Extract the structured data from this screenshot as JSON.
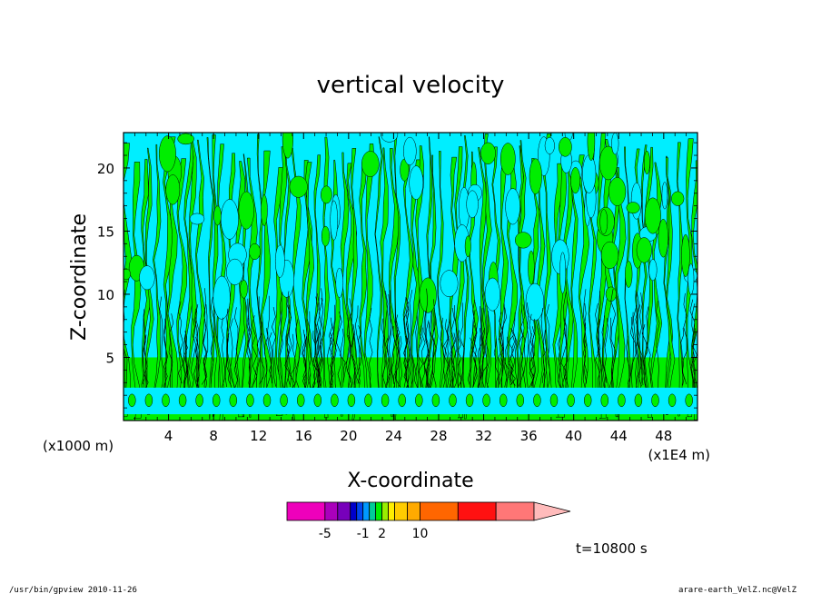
{
  "chart_data": {
    "type": "heatmap",
    "title": "vertical velocity",
    "xlabel": "X-coordinate",
    "ylabel": "Z-coordinate",
    "x_unit_left": "(x1000 m)",
    "x_unit_right": "(x1E4 m)",
    "xlim": [
      0,
      51
    ],
    "ylim": [
      0,
      22.8
    ],
    "x_ticks": [
      4,
      8,
      12,
      16,
      20,
      24,
      28,
      32,
      36,
      40,
      44,
      48
    ],
    "x_tick_labels": [
      "4",
      "8",
      "12",
      "16",
      "20",
      "24",
      "28",
      "32",
      "36",
      "40",
      "44",
      "48"
    ],
    "y_ticks": [
      5,
      10,
      15,
      20
    ],
    "y_tick_labels": [
      "5",
      "10",
      "15",
      "20"
    ],
    "grid": false,
    "field_colors": {
      "positive": "#00ee00",
      "negative": "#00eeff",
      "contour": "#000000"
    },
    "colorbar": {
      "colors": [
        "#ee00bb",
        "#aa00bb",
        "#7700bb",
        "#0000cc",
        "#0044ee",
        "#0099ff",
        "#00cc99",
        "#00ee00",
        "#99ee00",
        "#ffee00",
        "#ffcc00",
        "#ffaa00",
        "#ff6600",
        "#ff1111",
        "#ff7777",
        "#ffbbbb"
      ],
      "widths": [
        3,
        1,
        1,
        0.5,
        0.5,
        0.5,
        0.5,
        0.5,
        0.5,
        0.5,
        1,
        1,
        3,
        3,
        3,
        3
      ],
      "labels": [
        "-5",
        "-1",
        "2",
        "10"
      ],
      "label_values": [
        -5,
        -1,
        2,
        10
      ],
      "ticks": [
        -20,
        -5,
        -4,
        -3,
        -2,
        -1,
        0,
        1,
        2,
        3,
        4,
        5,
        10,
        15,
        20,
        25
      ]
    },
    "time_label": "t=10800 s"
  },
  "footer": {
    "left": "/usr/bin/gpview   2010-11-26",
    "right": "arare-earth_VelZ.nc@VelZ"
  }
}
